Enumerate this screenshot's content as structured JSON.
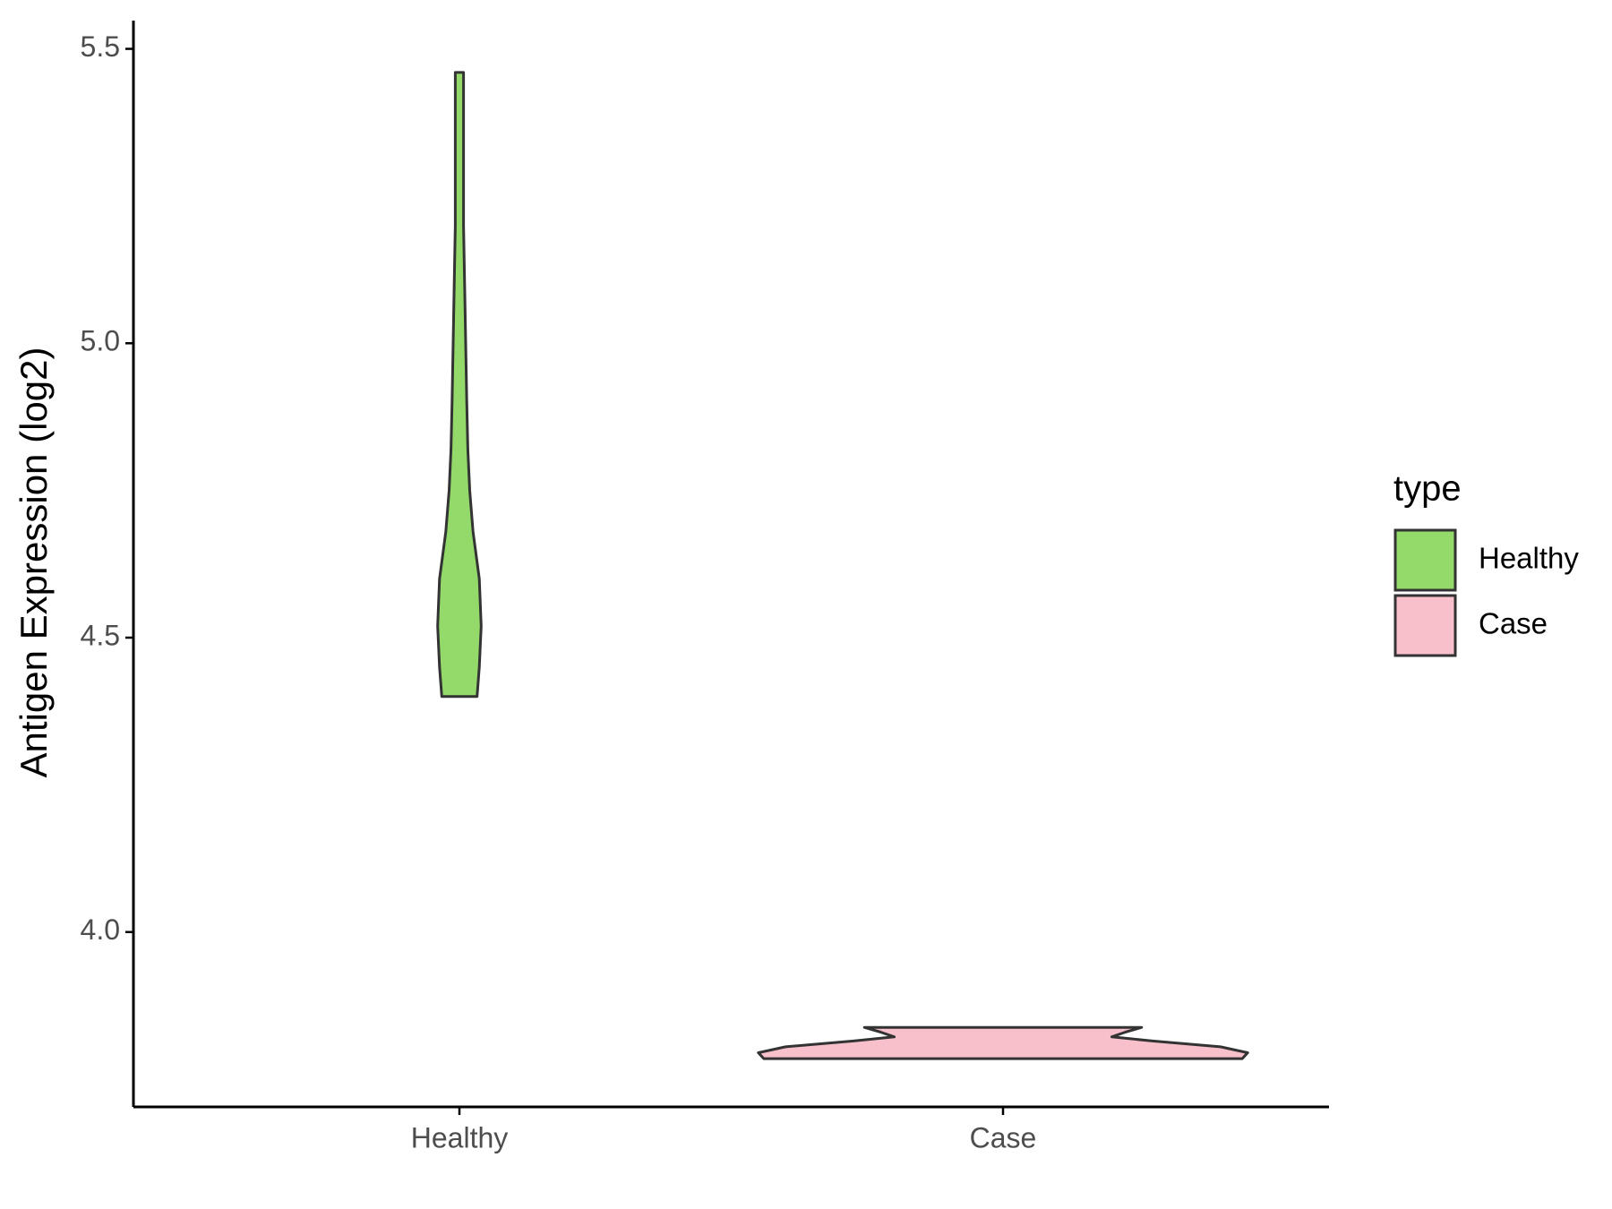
{
  "chart_data": {
    "type": "violin",
    "y_label": "Antigen Expression (log2)",
    "categories": [
      "Healthy",
      "Case"
    ],
    "ylim": [
      3.703,
      5.548
    ],
    "yticks": [
      {
        "value": 4,
        "label": "4.0"
      },
      4.5,
      {
        "value": 5,
        "label": "5.0"
      },
      5.5
    ],
    "legend_title": "type",
    "legend": "right",
    "series": [
      {
        "name": "Healthy",
        "color": "#93DA6A",
        "y": [
          4.4,
          4.45,
          4.52,
          4.6,
          4.68,
          4.75,
          4.82,
          4.9,
          5.0,
          5.1,
          5.2,
          5.3,
          5.4,
          5.46
        ],
        "widths": [
          0.065,
          0.073,
          0.08,
          0.073,
          0.05,
          0.038,
          0.031,
          0.027,
          0.023,
          0.019,
          0.015,
          0.015,
          0.015,
          0.015
        ]
      },
      {
        "name": "Case",
        "color": "#F8C0CB",
        "y": [
          3.785,
          3.795,
          3.805,
          3.815,
          3.822,
          3.83,
          3.838
        ],
        "widths": [
          0.88,
          0.9,
          0.8,
          0.55,
          0.4,
          0.45,
          0.51
        ]
      }
    ]
  }
}
